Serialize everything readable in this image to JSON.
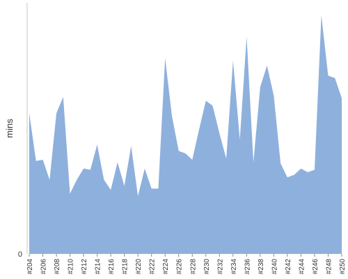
{
  "chart_data": {
    "type": "area",
    "title": "",
    "xlabel": "",
    "ylabel": "mins",
    "y_tick_labels": [
      "0"
    ],
    "ylim": [
      0,
      100
    ],
    "grid": false,
    "legend": "none",
    "color": "#8eb0dc",
    "x": [
      "#204",
      "#205",
      "#206",
      "#207",
      "#208",
      "#209",
      "#210",
      "#211",
      "#212",
      "#213",
      "#214",
      "#215",
      "#216",
      "#217",
      "#218",
      "#219",
      "#220",
      "#221",
      "#222",
      "#223",
      "#224",
      "#225",
      "#226",
      "#227",
      "#228",
      "#229",
      "#230",
      "#231",
      "#232",
      "#233",
      "#234",
      "#235",
      "#236",
      "#237",
      "#238",
      "#239",
      "#240",
      "#241",
      "#242",
      "#243",
      "#244",
      "#245",
      "#246",
      "#247",
      "#248",
      "#249",
      "#250"
    ],
    "x_tick_labels": [
      "#204",
      "#206",
      "#208",
      "#210",
      "#212",
      "#214",
      "#216",
      "#218",
      "#220",
      "#222",
      "#224",
      "#226",
      "#228",
      "#230",
      "#232",
      "#234",
      "#236",
      "#238",
      "#240",
      "#242",
      "#244",
      "#246",
      "#248",
      "#250"
    ],
    "values": [
      56,
      37,
      37.5,
      29.5,
      56,
      62.5,
      24,
      29.5,
      34,
      33.5,
      43.5,
      29.5,
      25.5,
      36.5,
      27,
      43,
      23,
      34,
      26,
      26,
      78,
      55,
      41,
      40,
      37.5,
      49.5,
      61,
      59,
      48,
      38,
      77,
      45.5,
      86.5,
      36.5,
      66.5,
      75,
      63,
      36,
      30.5,
      31.5,
      34,
      32.5,
      33.5,
      95,
      71,
      70,
      62
    ]
  }
}
